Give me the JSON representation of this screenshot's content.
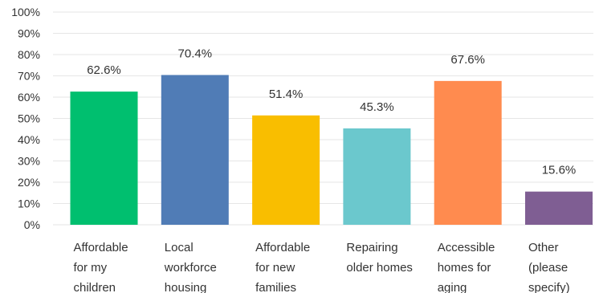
{
  "chart_data": {
    "type": "bar",
    "categories": [
      [
        "Affordable",
        "for my",
        "children"
      ],
      [
        "Local",
        "workforce",
        "housing"
      ],
      [
        "Affordable",
        "for new",
        "families"
      ],
      [
        "Repairing",
        "older homes"
      ],
      [
        "Accessible",
        "homes for",
        "aging"
      ],
      [
        "Other",
        "(please",
        "specify)"
      ]
    ],
    "values": [
      62.6,
      70.4,
      51.4,
      45.3,
      67.6,
      15.6
    ],
    "value_labels": [
      "62.6%",
      "70.4%",
      "51.4%",
      "45.3%",
      "67.6%",
      "15.6%"
    ],
    "colors": [
      "#00bf6f",
      "#507cb6",
      "#f9be00",
      "#6bc8cd",
      "#ff8b4f",
      "#7f5e93"
    ],
    "ylim": [
      0,
      100
    ],
    "yticks": [
      0,
      10,
      20,
      30,
      40,
      50,
      60,
      70,
      80,
      90,
      100
    ],
    "ytick_labels": [
      "0%",
      "10%",
      "20%",
      "30%",
      "40%",
      "50%",
      "60%",
      "70%",
      "80%",
      "90%",
      "100%"
    ],
    "grid": true,
    "gridline_color": "#e6e6e6",
    "xlabel": "",
    "ylabel": ""
  }
}
